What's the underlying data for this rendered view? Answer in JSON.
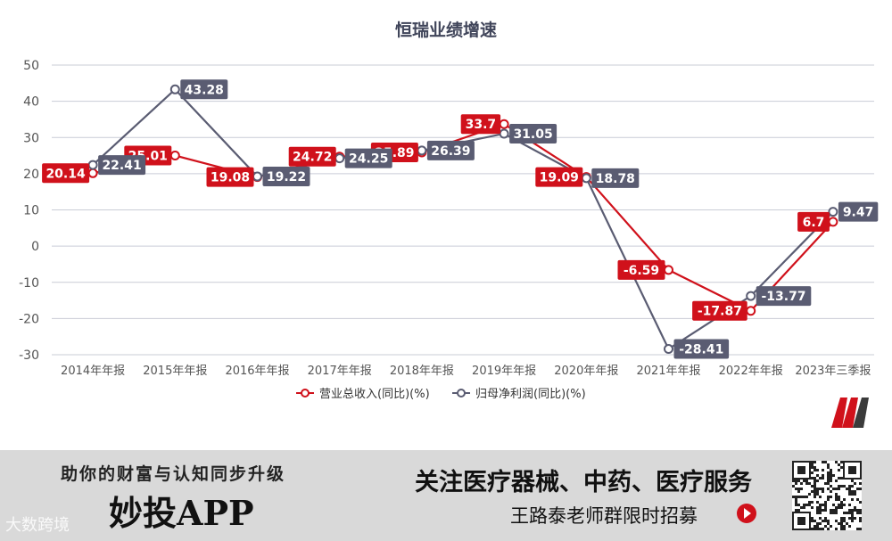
{
  "chart_data": {
    "type": "line",
    "title": "恒瑞业绩增速",
    "categories": [
      "2014年年报",
      "2015年年报",
      "2016年年报",
      "2017年年报",
      "2018年年报",
      "2019年年报",
      "2020年年报",
      "2021年年报",
      "2022年年报",
      "2023年三季报"
    ],
    "ylim": [
      -30,
      50
    ],
    "yticks": [
      -30,
      -20,
      -10,
      0,
      10,
      20,
      30,
      40,
      50
    ],
    "grid": true,
    "legend_position": "bottom-center",
    "series": [
      {
        "name": "营业总收入(同比)(%)",
        "color": "#d0111b",
        "values": [
          20.14,
          25.01,
          19.08,
          24.72,
          25.89,
          33.7,
          19.09,
          -6.59,
          -17.87,
          6.7
        ],
        "labels": [
          "20.14",
          "25.01",
          "19.08",
          "24.72",
          "25.89",
          "33.7",
          "19.09",
          "-6.59",
          "-17.87",
          "6.7"
        ]
      },
      {
        "name": "归母净利润(同比)(%)",
        "color": "#5a5c72",
        "values": [
          22.41,
          43.28,
          19.22,
          24.25,
          26.39,
          31.05,
          18.78,
          -28.41,
          -13.77,
          9.47
        ],
        "labels": [
          "22.41",
          "43.28",
          "19.22",
          "24.25",
          "26.39",
          "31.05",
          "18.78",
          "-28.41",
          "-13.77",
          "9.47"
        ]
      }
    ]
  },
  "footer": {
    "slogan": "助你的财富与认知同步升级",
    "app_name": "妙投APP",
    "topic": "关注医疗器械、中药、医疗服务",
    "teacher": "王路泰老师群限时招募",
    "watermark": "大数跨境",
    "arrow_icon": "arrow-right-circle-icon",
    "qr_icon": "qr-code-icon",
    "logo_icon": "brand-logo-icon"
  }
}
